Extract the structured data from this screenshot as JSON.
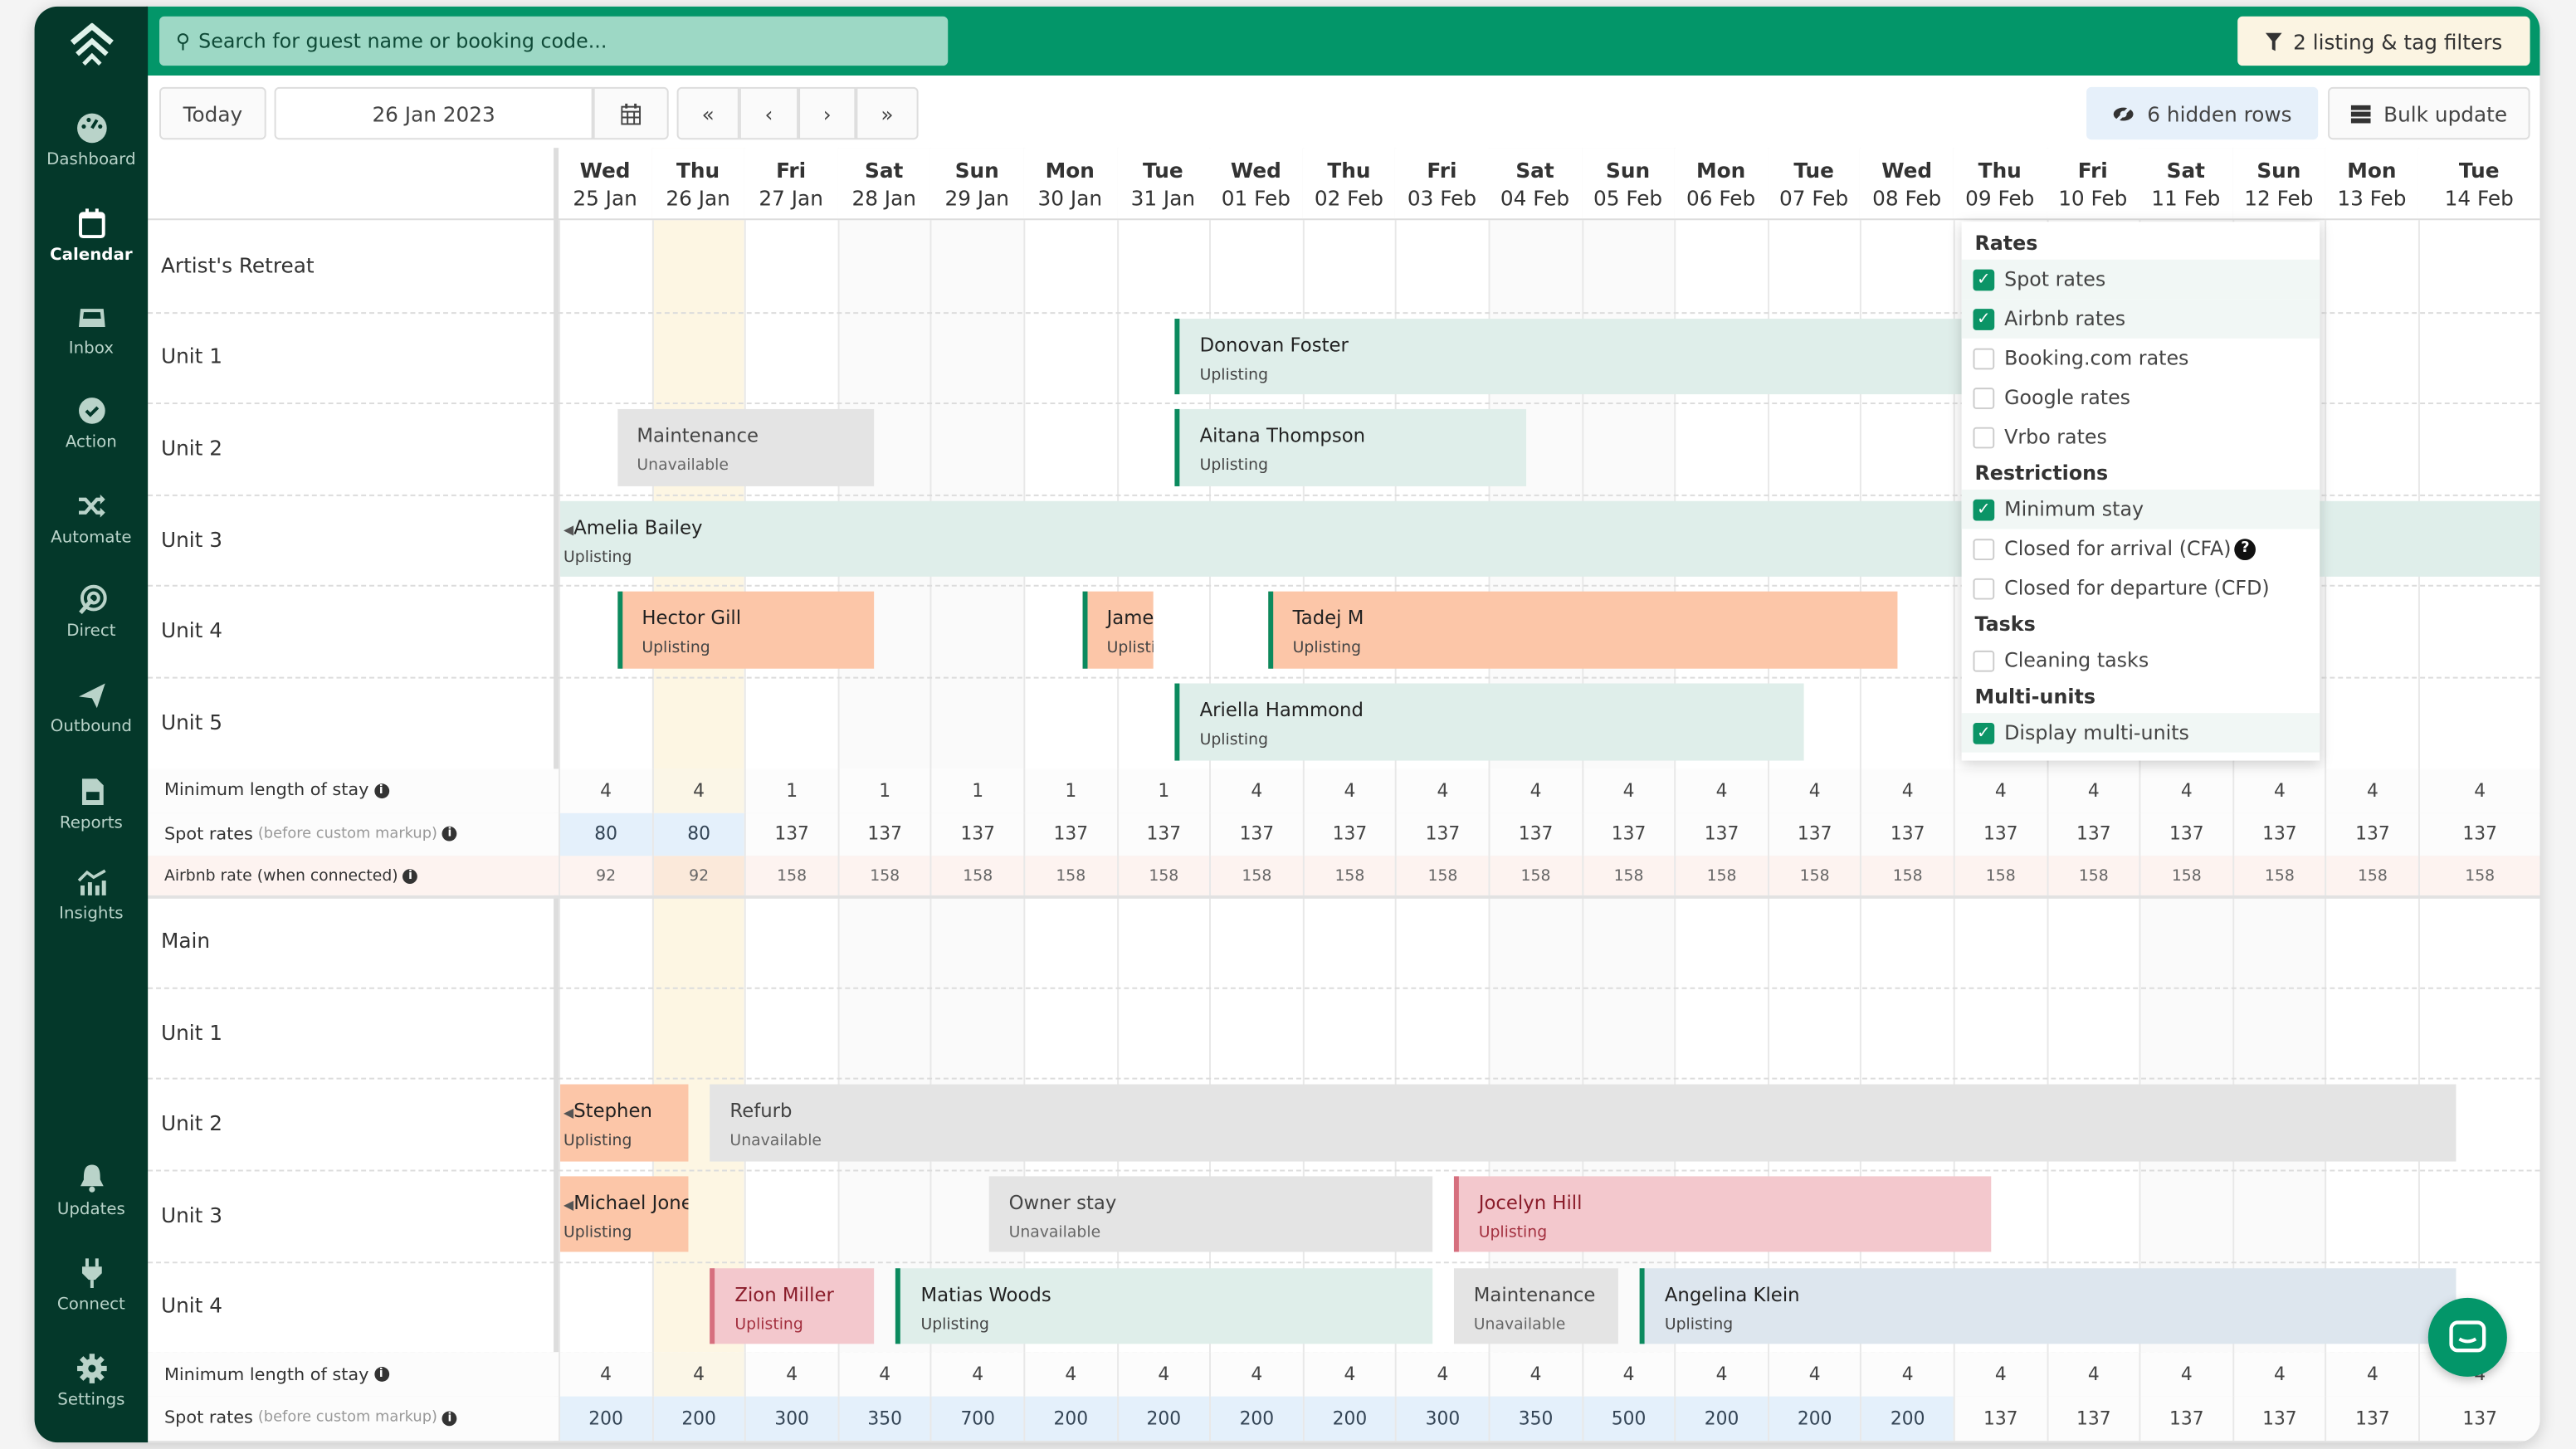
{
  "sidebar": {
    "items": [
      {
        "label": "Dashboard",
        "icon": "dashboard-icon"
      },
      {
        "label": "Calendar",
        "icon": "calendar-icon",
        "active": true
      },
      {
        "label": "Inbox",
        "icon": "inbox-icon"
      },
      {
        "label": "Action",
        "icon": "check-circle-icon"
      },
      {
        "label": "Automate",
        "icon": "shuffle-icon"
      },
      {
        "label": "Direct",
        "icon": "target-icon"
      },
      {
        "label": "Outbound",
        "icon": "paper-plane-icon"
      },
      {
        "label": "Reports",
        "icon": "report-icon"
      },
      {
        "label": "Insights",
        "icon": "chart-icon"
      }
    ],
    "bottom_items": [
      {
        "label": "Updates",
        "icon": "bell-icon"
      },
      {
        "label": "Connect",
        "icon": "plug-icon"
      },
      {
        "label": "Settings",
        "icon": "gear-icon"
      }
    ]
  },
  "header": {
    "search_placeholder": "Search for guest name or booking code...",
    "filter_label": "2 listing & tag filters"
  },
  "toolbar": {
    "today": "Today",
    "date": "26 Jan 2023",
    "hidden_rows": "6 hidden rows",
    "bulk_update": "Bulk update"
  },
  "colors": {
    "brand": "#039669",
    "sidebar": "#04382a",
    "today_column": "#fdf6e3"
  },
  "today": "26 Jan",
  "columns": [
    {
      "dow": "Wed",
      "date": "25 Jan"
    },
    {
      "dow": "Thu",
      "date": "26 Jan"
    },
    {
      "dow": "Fri",
      "date": "27 Jan"
    },
    {
      "dow": "Sat",
      "date": "28 Jan"
    },
    {
      "dow": "Sun",
      "date": "29 Jan"
    },
    {
      "dow": "Mon",
      "date": "30 Jan"
    },
    {
      "dow": "Tue",
      "date": "31 Jan"
    },
    {
      "dow": "Wed",
      "date": "01 Feb"
    },
    {
      "dow": "Thu",
      "date": "02 Feb"
    },
    {
      "dow": "Fri",
      "date": "03 Feb"
    },
    {
      "dow": "Sat",
      "date": "04 Feb"
    },
    {
      "dow": "Sun",
      "date": "05 Feb"
    },
    {
      "dow": "Mon",
      "date": "06 Feb"
    },
    {
      "dow": "Tue",
      "date": "07 Feb"
    },
    {
      "dow": "Wed",
      "date": "08 Feb"
    },
    {
      "dow": "Thu",
      "date": "09 Feb"
    },
    {
      "dow": "Fri",
      "date": "10 Feb"
    },
    {
      "dow": "Sat",
      "date": "11 Feb"
    },
    {
      "dow": "Sun",
      "date": "12 Feb"
    },
    {
      "dow": "Mon",
      "date": "13 Feb"
    },
    {
      "dow": "Tue",
      "date": "14 Feb"
    }
  ],
  "sections": [
    {
      "rows": [
        {
          "label": "Artist's Retreat",
          "bookings": []
        },
        {
          "label": "Unit 1",
          "bookings": [
            {
              "name": "Donovan Foster",
              "sub": "Uplisting",
              "start": "31 Jan",
              "end": "11 Feb",
              "type": "green"
            }
          ]
        },
        {
          "label": "Unit 2",
          "bookings": [
            {
              "name": "Maintenance",
              "sub": "Unavailable",
              "start": "25 Jan",
              "end": "28 Jan",
              "type": "gray"
            },
            {
              "name": "Aitana Thompson",
              "sub": "Uplisting",
              "start": "31 Jan",
              "end": "04 Feb",
              "type": "green"
            }
          ]
        },
        {
          "label": "Unit 3",
          "bookings": [
            {
              "name": "Amelia Bailey",
              "sub": "Uplisting",
              "start": null,
              "end": null,
              "type": "green"
            }
          ]
        },
        {
          "label": "Unit 4",
          "bookings": [
            {
              "name": "Hector Gill",
              "sub": "Uplisting",
              "start": "25 Jan",
              "end": "28 Jan",
              "type": "orange"
            },
            {
              "name": "James",
              "sub": "Uplisting",
              "start": "30 Jan",
              "end": "31 Jan",
              "type": "orange"
            },
            {
              "name": "Tadej M",
              "sub": "Uplisting",
              "start": "01 Feb",
              "end": "08 Feb",
              "type": "orange"
            }
          ]
        },
        {
          "label": "Unit 5",
          "bookings": [
            {
              "name": "Ariella Hammond",
              "sub": "Uplisting",
              "start": "31 Jan",
              "end": "07 Feb",
              "type": "green"
            }
          ]
        }
      ],
      "stats": [
        {
          "kind": "minstay",
          "label": "Minimum length of stay",
          "note": "",
          "values": [
            "4",
            "4",
            "1",
            "1",
            "1",
            "1",
            "1",
            "4",
            "4",
            "4",
            "4",
            "4",
            "4",
            "4",
            "4",
            "4",
            "4",
            "4",
            "4",
            "4",
            "4"
          ]
        },
        {
          "kind": "spot",
          "label": "Spot rates",
          "note": "(before custom markup)",
          "values": [
            "80",
            "80",
            "137",
            "137",
            "137",
            "137",
            "137",
            "137",
            "137",
            "137",
            "137",
            "137",
            "137",
            "137",
            "137",
            "137",
            "137",
            "137",
            "137",
            "137",
            "137"
          ],
          "custom": [
            true,
            true,
            false,
            false,
            false,
            false,
            false,
            false,
            false,
            false,
            false,
            false,
            false,
            false,
            false,
            false,
            false,
            false,
            false,
            false,
            false
          ]
        },
        {
          "kind": "airbnb",
          "label": "Airbnb rate (when connected)",
          "note": "",
          "values": [
            "92",
            "92",
            "158",
            "158",
            "158",
            "158",
            "158",
            "158",
            "158",
            "158",
            "158",
            "158",
            "158",
            "158",
            "158",
            "158",
            "158",
            "158",
            "158",
            "158",
            "158"
          ]
        }
      ]
    },
    {
      "rows": [
        {
          "label": "Main",
          "bookings": []
        },
        {
          "label": "Unit 1",
          "bookings": []
        },
        {
          "label": "Unit 2",
          "bookings": [
            {
              "name": "Stephen",
              "sub": "Uplisting",
              "start": null,
              "end": "26 Jan",
              "type": "orange"
            },
            {
              "name": "Refurb",
              "sub": "Unavailable",
              "start": "26 Jan",
              "end": "14 Feb",
              "type": "gray"
            }
          ]
        },
        {
          "label": "Unit 3",
          "bookings": [
            {
              "name": "Michael Jones",
              "sub": "Uplisting",
              "start": null,
              "end": "26 Jan",
              "type": "orange"
            },
            {
              "name": "Owner stay",
              "sub": "Unavailable",
              "start": "29 Jan",
              "end": "03 Feb",
              "type": "gray"
            },
            {
              "name": "Jocelyn Hill",
              "sub": "Uplisting",
              "start": "03 Feb",
              "end": "09 Feb",
              "type": "pink"
            }
          ]
        },
        {
          "label": "Unit 4",
          "bookings": [
            {
              "name": "Zion Miller",
              "sub": "Uplisting",
              "start": "26 Jan",
              "end": "28 Jan",
              "type": "pink"
            },
            {
              "name": "Matias Woods",
              "sub": "Uplisting",
              "start": "28 Jan",
              "end": "03 Feb",
              "type": "green"
            },
            {
              "name": "Maintenance",
              "sub": "Unavailable",
              "start": "03 Feb",
              "end": "05 Feb",
              "type": "gray"
            },
            {
              "name": "Angelina Klein",
              "sub": "Uplisting",
              "start": "05 Feb",
              "end": "14 Feb",
              "type": "blue"
            }
          ]
        }
      ],
      "stats": [
        {
          "kind": "minstay",
          "label": "Minimum length of stay",
          "note": "",
          "values": [
            "4",
            "4",
            "4",
            "4",
            "4",
            "4",
            "4",
            "4",
            "4",
            "4",
            "4",
            "4",
            "4",
            "4",
            "4",
            "4",
            "4",
            "4",
            "4",
            "4",
            "4"
          ]
        },
        {
          "kind": "spot",
          "label": "Spot rates",
          "note": "(before custom markup)",
          "values": [
            "200",
            "200",
            "300",
            "350",
            "700",
            "200",
            "200",
            "200",
            "200",
            "300",
            "350",
            "500",
            "200",
            "200",
            "200",
            "137",
            "137",
            "137",
            "137",
            "137",
            "137"
          ],
          "custom": [
            true,
            true,
            true,
            true,
            true,
            true,
            true,
            true,
            true,
            true,
            true,
            true,
            true,
            true,
            true,
            false,
            false,
            false,
            false,
            false,
            false
          ]
        }
      ]
    }
  ],
  "dropdown": {
    "groups": [
      {
        "title": "Rates",
        "items": [
          {
            "label": "Spot rates",
            "checked": true
          },
          {
            "label": "Airbnb rates",
            "checked": true
          },
          {
            "label": "Booking.com rates",
            "checked": false
          },
          {
            "label": "Google rates",
            "checked": false
          },
          {
            "label": "Vrbo rates",
            "checked": false
          }
        ]
      },
      {
        "title": "Restrictions",
        "items": [
          {
            "label": "Minimum stay",
            "checked": true
          },
          {
            "label": "Closed for arrival (CFA)",
            "checked": false,
            "help": true
          },
          {
            "label": "Closed for departure (CFD)",
            "checked": false
          }
        ]
      },
      {
        "title": "Tasks",
        "items": [
          {
            "label": "Cleaning tasks",
            "checked": false
          }
        ]
      },
      {
        "title": "Multi-units",
        "items": [
          {
            "label": "Display multi-units",
            "checked": true
          }
        ]
      }
    ]
  }
}
